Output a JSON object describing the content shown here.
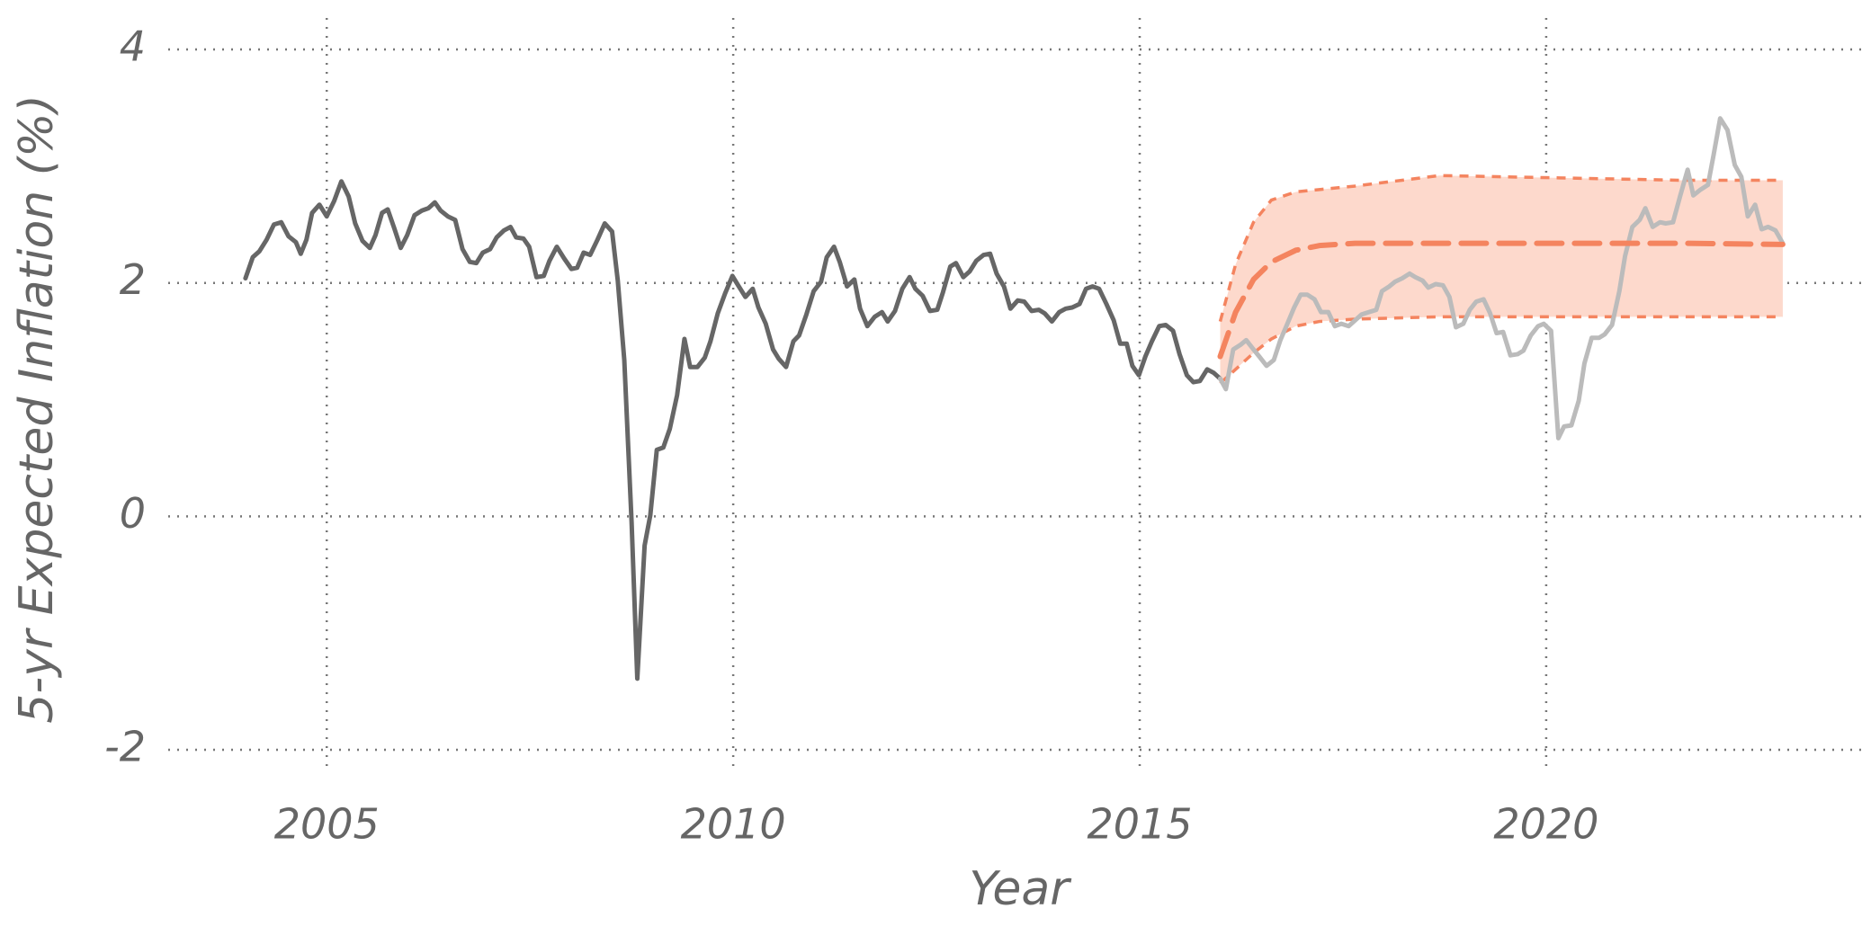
{
  "chart_data": {
    "type": "line",
    "xlabel": "Year",
    "ylabel": "5-yr Expected Inflation (%)",
    "xlim": [
      2003.05,
      2023.94
    ],
    "ylim": [
      -2.2,
      4.27
    ],
    "xticks": [
      2005,
      2010,
      2015,
      2020
    ],
    "yticks": [
      -2,
      0,
      2,
      4
    ],
    "grid": true,
    "band": {
      "x": [
        2015.99,
        2016.18,
        2016.4,
        2016.62,
        2016.92,
        2017.21,
        2017.65,
        2018.69,
        2020.16,
        2021.64,
        2022.91
      ],
      "upper": [
        1.67,
        2.16,
        2.52,
        2.71,
        2.78,
        2.8,
        2.83,
        2.92,
        2.9,
        2.88,
        2.88
      ],
      "lower": [
        1.14,
        1.26,
        1.4,
        1.52,
        1.63,
        1.67,
        1.69,
        1.71,
        1.71,
        1.71,
        1.71
      ],
      "color": "#fdd9cc",
      "line_color": "#f4845f",
      "dash": "10 8"
    },
    "series": [
      {
        "color": "#666666",
        "width": 5,
        "x": [
          2004.0,
          2004.09,
          2004.17,
          2004.26,
          2004.35,
          2004.44,
          2004.53,
          2004.62,
          2004.68,
          2004.75,
          2004.82,
          2004.91,
          2005.0,
          2005.09,
          2005.18,
          2005.27,
          2005.35,
          2005.44,
          2005.53,
          2005.6,
          2005.68,
          2005.75,
          2005.83,
          2005.91,
          2005.99,
          2006.08,
          2006.17,
          2006.25,
          2006.33,
          2006.4,
          2006.49,
          2006.58,
          2006.67,
          2006.76,
          2006.84,
          2006.92,
          2007.01,
          2007.09,
          2007.18,
          2007.26,
          2007.33,
          2007.42,
          2007.49,
          2007.58,
          2007.67,
          2007.74,
          2007.83,
          2007.92,
          2008.01,
          2008.08,
          2008.16,
          2008.24,
          2008.33,
          2008.42,
          2008.51,
          2008.58,
          2008.66,
          2008.75,
          2008.82,
          2008.91,
          2008.98,
          2009.06,
          2009.14,
          2009.22,
          2009.31,
          2009.4,
          2009.47,
          2009.56,
          2009.65,
          2009.72,
          2009.81,
          2009.9,
          2009.99,
          2010.06,
          2010.15,
          2010.24,
          2010.31,
          2010.4,
          2010.49,
          2010.56,
          2010.65,
          2010.74,
          2010.81,
          2010.9,
          2010.99,
          2011.08,
          2011.15,
          2011.24,
          2011.31,
          2011.4,
          2011.49,
          2011.56,
          2011.65,
          2011.74,
          2011.83,
          2011.9,
          2011.99,
          2012.08,
          2012.17,
          2012.24,
          2012.33,
          2012.42,
          2012.51,
          2012.58,
          2012.67,
          2012.74,
          2012.83,
          2012.91,
          2012.99,
          2013.08,
          2013.16,
          2013.24,
          2013.33,
          2013.41,
          2013.5,
          2013.58,
          2013.67,
          2013.76,
          2013.83,
          2013.92,
          2014.01,
          2014.09,
          2014.17,
          2014.26,
          2014.34,
          2014.42,
          2014.5,
          2014.59,
          2014.68,
          2014.76,
          2014.84,
          2014.91,
          2014.99,
          2015.07,
          2015.15,
          2015.24,
          2015.32,
          2015.41,
          2015.49,
          2015.58,
          2015.66,
          2015.74,
          2015.83,
          2015.91,
          2015.99
        ],
        "values": [
          2.04,
          2.22,
          2.27,
          2.37,
          2.5,
          2.52,
          2.4,
          2.35,
          2.25,
          2.37,
          2.6,
          2.67,
          2.57,
          2.7,
          2.87,
          2.74,
          2.51,
          2.36,
          2.3,
          2.41,
          2.6,
          2.63,
          2.47,
          2.3,
          2.41,
          2.58,
          2.62,
          2.64,
          2.69,
          2.62,
          2.57,
          2.54,
          2.29,
          2.18,
          2.17,
          2.26,
          2.29,
          2.39,
          2.45,
          2.48,
          2.39,
          2.38,
          2.31,
          2.05,
          2.06,
          2.19,
          2.31,
          2.21,
          2.12,
          2.13,
          2.26,
          2.24,
          2.37,
          2.51,
          2.44,
          2.02,
          1.34,
          -0.05,
          -1.39,
          -0.25,
          0.01,
          0.57,
          0.59,
          0.75,
          1.04,
          1.52,
          1.28,
          1.28,
          1.36,
          1.5,
          1.74,
          1.91,
          2.06,
          1.98,
          1.88,
          1.95,
          1.79,
          1.65,
          1.43,
          1.35,
          1.28,
          1.5,
          1.55,
          1.73,
          1.93,
          2.01,
          2.22,
          2.31,
          2.18,
          1.97,
          2.03,
          1.78,
          1.63,
          1.71,
          1.75,
          1.67,
          1.76,
          1.95,
          2.05,
          1.95,
          1.89,
          1.76,
          1.77,
          1.92,
          2.14,
          2.17,
          2.05,
          2.1,
          2.19,
          2.24,
          2.25,
          2.08,
          1.97,
          1.78,
          1.85,
          1.84,
          1.76,
          1.77,
          1.74,
          1.67,
          1.75,
          1.78,
          1.79,
          1.82,
          1.95,
          1.97,
          1.95,
          1.82,
          1.68,
          1.48,
          1.48,
          1.29,
          1.21,
          1.37,
          1.5,
          1.63,
          1.64,
          1.59,
          1.39,
          1.21,
          1.15,
          1.16,
          1.26,
          1.23,
          1.18
        ]
      },
      {
        "color": "#bbbbbb",
        "width": 5,
        "x": [
          2015.99,
          2016.06,
          2016.15,
          2016.24,
          2016.31,
          2016.4,
          2016.47,
          2016.56,
          2016.65,
          2016.73,
          2016.81,
          2016.9,
          2016.98,
          2017.06,
          2017.15,
          2017.23,
          2017.32,
          2017.4,
          2017.48,
          2017.57,
          2017.65,
          2017.73,
          2017.82,
          2017.91,
          2017.98,
          2018.07,
          2018.14,
          2018.23,
          2018.32,
          2018.39,
          2018.48,
          2018.55,
          2018.64,
          2018.73,
          2018.81,
          2018.89,
          2018.98,
          2019.06,
          2019.14,
          2019.23,
          2019.31,
          2019.39,
          2019.47,
          2019.56,
          2019.65,
          2019.72,
          2019.81,
          2019.9,
          2019.97,
          2020.06,
          2020.15,
          2020.22,
          2020.31,
          2020.4,
          2020.47,
          2020.56,
          2020.65,
          2020.72,
          2020.81,
          2020.9,
          2020.97,
          2021.06,
          2021.15,
          2021.22,
          2021.31,
          2021.4,
          2021.47,
          2021.56,
          2021.65,
          2021.74,
          2021.81,
          2021.9,
          2021.99,
          2022.06,
          2022.14,
          2022.23,
          2022.32,
          2022.4,
          2022.48,
          2022.57,
          2022.65,
          2022.73,
          2022.82,
          2022.91
        ],
        "values": [
          1.18,
          1.09,
          1.43,
          1.47,
          1.51,
          1.43,
          1.37,
          1.29,
          1.34,
          1.51,
          1.64,
          1.79,
          1.9,
          1.9,
          1.86,
          1.75,
          1.75,
          1.63,
          1.65,
          1.63,
          1.68,
          1.73,
          1.75,
          1.77,
          1.93,
          1.97,
          2.01,
          2.04,
          2.08,
          2.05,
          2.02,
          1.96,
          1.99,
          1.98,
          1.88,
          1.62,
          1.65,
          1.77,
          1.84,
          1.86,
          1.74,
          1.57,
          1.58,
          1.38,
          1.39,
          1.42,
          1.55,
          1.63,
          1.65,
          1.59,
          0.67,
          0.77,
          0.78,
          0.99,
          1.31,
          1.53,
          1.53,
          1.56,
          1.64,
          1.93,
          2.23,
          2.48,
          2.54,
          2.64,
          2.48,
          2.52,
          2.51,
          2.52,
          2.75,
          2.97,
          2.75,
          2.8,
          2.84,
          3.1,
          3.41,
          3.31,
          3.01,
          2.91,
          2.57,
          2.67,
          2.46,
          2.48,
          2.45,
          2.34
        ]
      },
      {
        "color": "#f4845f",
        "width": 6,
        "dash": "28 14",
        "x": [
          2015.99,
          2016.18,
          2016.4,
          2016.62,
          2016.92,
          2017.21,
          2017.65,
          2018.69,
          2020.16,
          2021.64,
          2022.91
        ],
        "values": [
          1.37,
          1.75,
          2.03,
          2.18,
          2.28,
          2.32,
          2.34,
          2.34,
          2.34,
          2.34,
          2.33
        ]
      }
    ]
  }
}
